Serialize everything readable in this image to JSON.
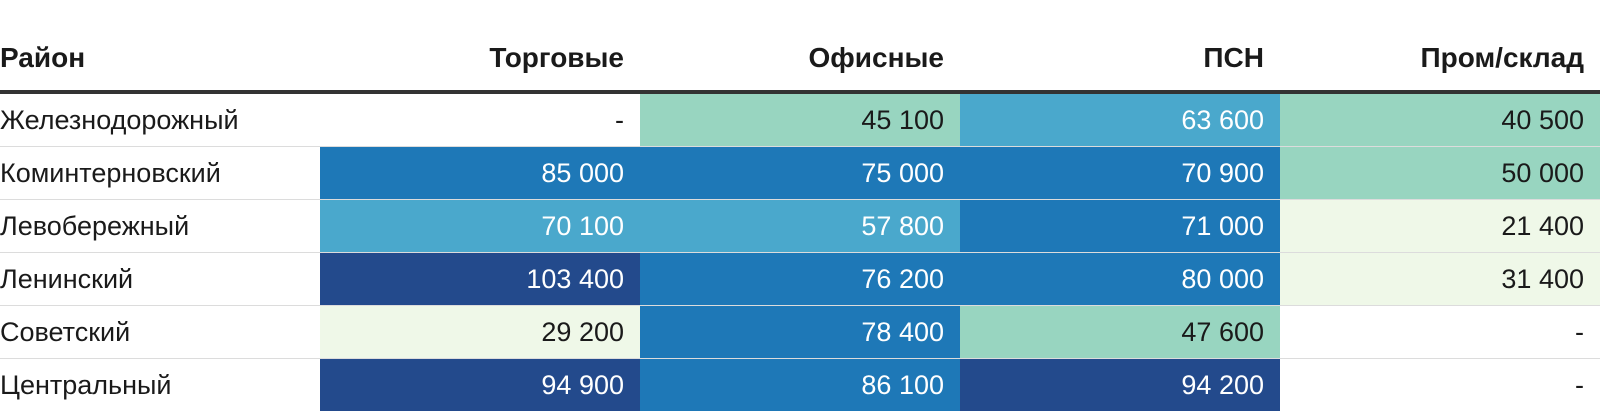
{
  "chart_data": {
    "type": "heatmap",
    "columns": [
      "Район",
      "Торговые",
      "Офисные",
      "ПСН",
      "Пром/склад"
    ],
    "rows": [
      {
        "district": "Железнодорожный",
        "cells": [
          {
            "value": "-",
            "color": "#ffffff",
            "text_color": "#1a1a1a"
          },
          {
            "value": "45 100",
            "color": "#98d5c0",
            "text_color": "#1a1a1a"
          },
          {
            "value": "63 600",
            "color": "#4aa8cc",
            "text_color": "#ffffff"
          },
          {
            "value": "40 500",
            "color": "#98d5c0",
            "text_color": "#1a1a1a"
          }
        ]
      },
      {
        "district": "Коминтерновский",
        "cells": [
          {
            "value": "85 000",
            "color": "#1e78b7",
            "text_color": "#ffffff"
          },
          {
            "value": "75 000",
            "color": "#1e78b7",
            "text_color": "#ffffff"
          },
          {
            "value": "70 900",
            "color": "#1e78b7",
            "text_color": "#ffffff"
          },
          {
            "value": "50 000",
            "color": "#98d5c0",
            "text_color": "#1a1a1a"
          }
        ]
      },
      {
        "district": "Левобережный",
        "cells": [
          {
            "value": "70 100",
            "color": "#4aa8cc",
            "text_color": "#ffffff"
          },
          {
            "value": "57 800",
            "color": "#4aa8cc",
            "text_color": "#ffffff"
          },
          {
            "value": "71 000",
            "color": "#1e78b7",
            "text_color": "#ffffff"
          },
          {
            "value": "21 400",
            "color": "#eff8e8",
            "text_color": "#1a1a1a"
          }
        ]
      },
      {
        "district": "Ленинский",
        "cells": [
          {
            "value": "103 400",
            "color": "#234a8c",
            "text_color": "#ffffff"
          },
          {
            "value": "76 200",
            "color": "#1e78b7",
            "text_color": "#ffffff"
          },
          {
            "value": "80 000",
            "color": "#1e78b7",
            "text_color": "#ffffff"
          },
          {
            "value": "31 400",
            "color": "#eff8e8",
            "text_color": "#1a1a1a"
          }
        ]
      },
      {
        "district": "Советский",
        "cells": [
          {
            "value": "29 200",
            "color": "#eff8e8",
            "text_color": "#1a1a1a"
          },
          {
            "value": "78 400",
            "color": "#1e78b7",
            "text_color": "#ffffff"
          },
          {
            "value": "47 600",
            "color": "#98d5c0",
            "text_color": "#1a1a1a"
          },
          {
            "value": "-",
            "color": "#ffffff",
            "text_color": "#1a1a1a"
          }
        ]
      },
      {
        "district": "Центральный",
        "cells": [
          {
            "value": "94 900",
            "color": "#234a8c",
            "text_color": "#ffffff"
          },
          {
            "value": "86 100",
            "color": "#1e78b7",
            "text_color": "#ffffff"
          },
          {
            "value": "94 200",
            "color": "#234a8c",
            "text_color": "#ffffff"
          },
          {
            "value": "-",
            "color": "#ffffff",
            "text_color": "#1a1a1a"
          }
        ]
      }
    ]
  }
}
